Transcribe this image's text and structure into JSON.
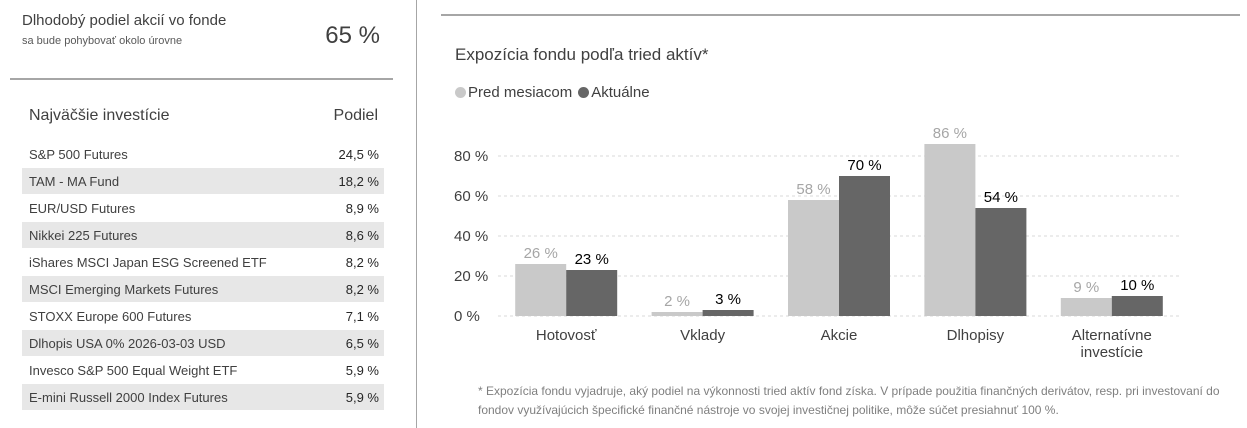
{
  "equity": {
    "label": "Dlhodobý podiel akcií vo fonde",
    "sublabel": "sa bude pohybovať okolo úrovne",
    "value": "65 %"
  },
  "holdings": {
    "header_name": "Najväčšie investície",
    "header_share": "Podiel",
    "rows": [
      {
        "name": "S&P 500 Futures",
        "share": "24,5 %"
      },
      {
        "name": "TAM - MA Fund",
        "share": "18,2 %"
      },
      {
        "name": "EUR/USD Futures",
        "share": "8,9 %"
      },
      {
        "name": "Nikkei 225 Futures",
        "share": "8,6 %"
      },
      {
        "name": "iShares MSCI Japan ESG Screened ETF",
        "share": "8,2 %"
      },
      {
        "name": "MSCI Emerging Markets Futures",
        "share": "8,2 %"
      },
      {
        "name": "STOXX Europe 600 Futures",
        "share": "7,1 %"
      },
      {
        "name": "Dlhopis USA 0% 2026-03-03 USD",
        "share": "6,5 %"
      },
      {
        "name": "Invesco S&P 500 Equal Weight ETF",
        "share": "5,9 %"
      },
      {
        "name": "E-mini Russell 2000 Index Futures",
        "share": "5,9 %"
      }
    ]
  },
  "chart_data": {
    "type": "bar",
    "title": "Expozícia fondu podľa tried aktív*",
    "categories": [
      [
        "Hotovosť"
      ],
      [
        "Vklady"
      ],
      [
        "Akcie"
      ],
      [
        "Dlhopisy"
      ],
      [
        "Alternatívne",
        "investície"
      ]
    ],
    "series": [
      {
        "name": "Pred mesiacom",
        "values": [
          26,
          2,
          58,
          86,
          9
        ],
        "labels": [
          "26 %",
          "2 %",
          "58 %",
          "86 %",
          "9 %"
        ],
        "color": "#c9c9c9",
        "label_color": "#a6a6a6"
      },
      {
        "name": "Aktuálne",
        "values": [
          23,
          3,
          70,
          54,
          10
        ],
        "labels": [
          "23 %",
          "3 %",
          "70 %",
          "54 %",
          "10 %"
        ],
        "color": "#666666",
        "label_color": "#000000"
      }
    ],
    "yticks": [
      0,
      20,
      40,
      60,
      80
    ],
    "ytick_labels": [
      "0 %",
      "20 %",
      "40 %",
      "60 %",
      "80 %"
    ],
    "ylim": [
      0,
      80
    ],
    "grid": true,
    "legend": "top-left",
    "footnote": "* Expozícia fondu vyjadruje, aký podiel na výkonnosti tried aktív fond získa. V prípade použitia finančných derivátov, resp. pri investovaní do fondov využívajúcich špecifické finančné nástroje vo svojej investičnej politike, môže súčet presiahnuť 100 %."
  }
}
